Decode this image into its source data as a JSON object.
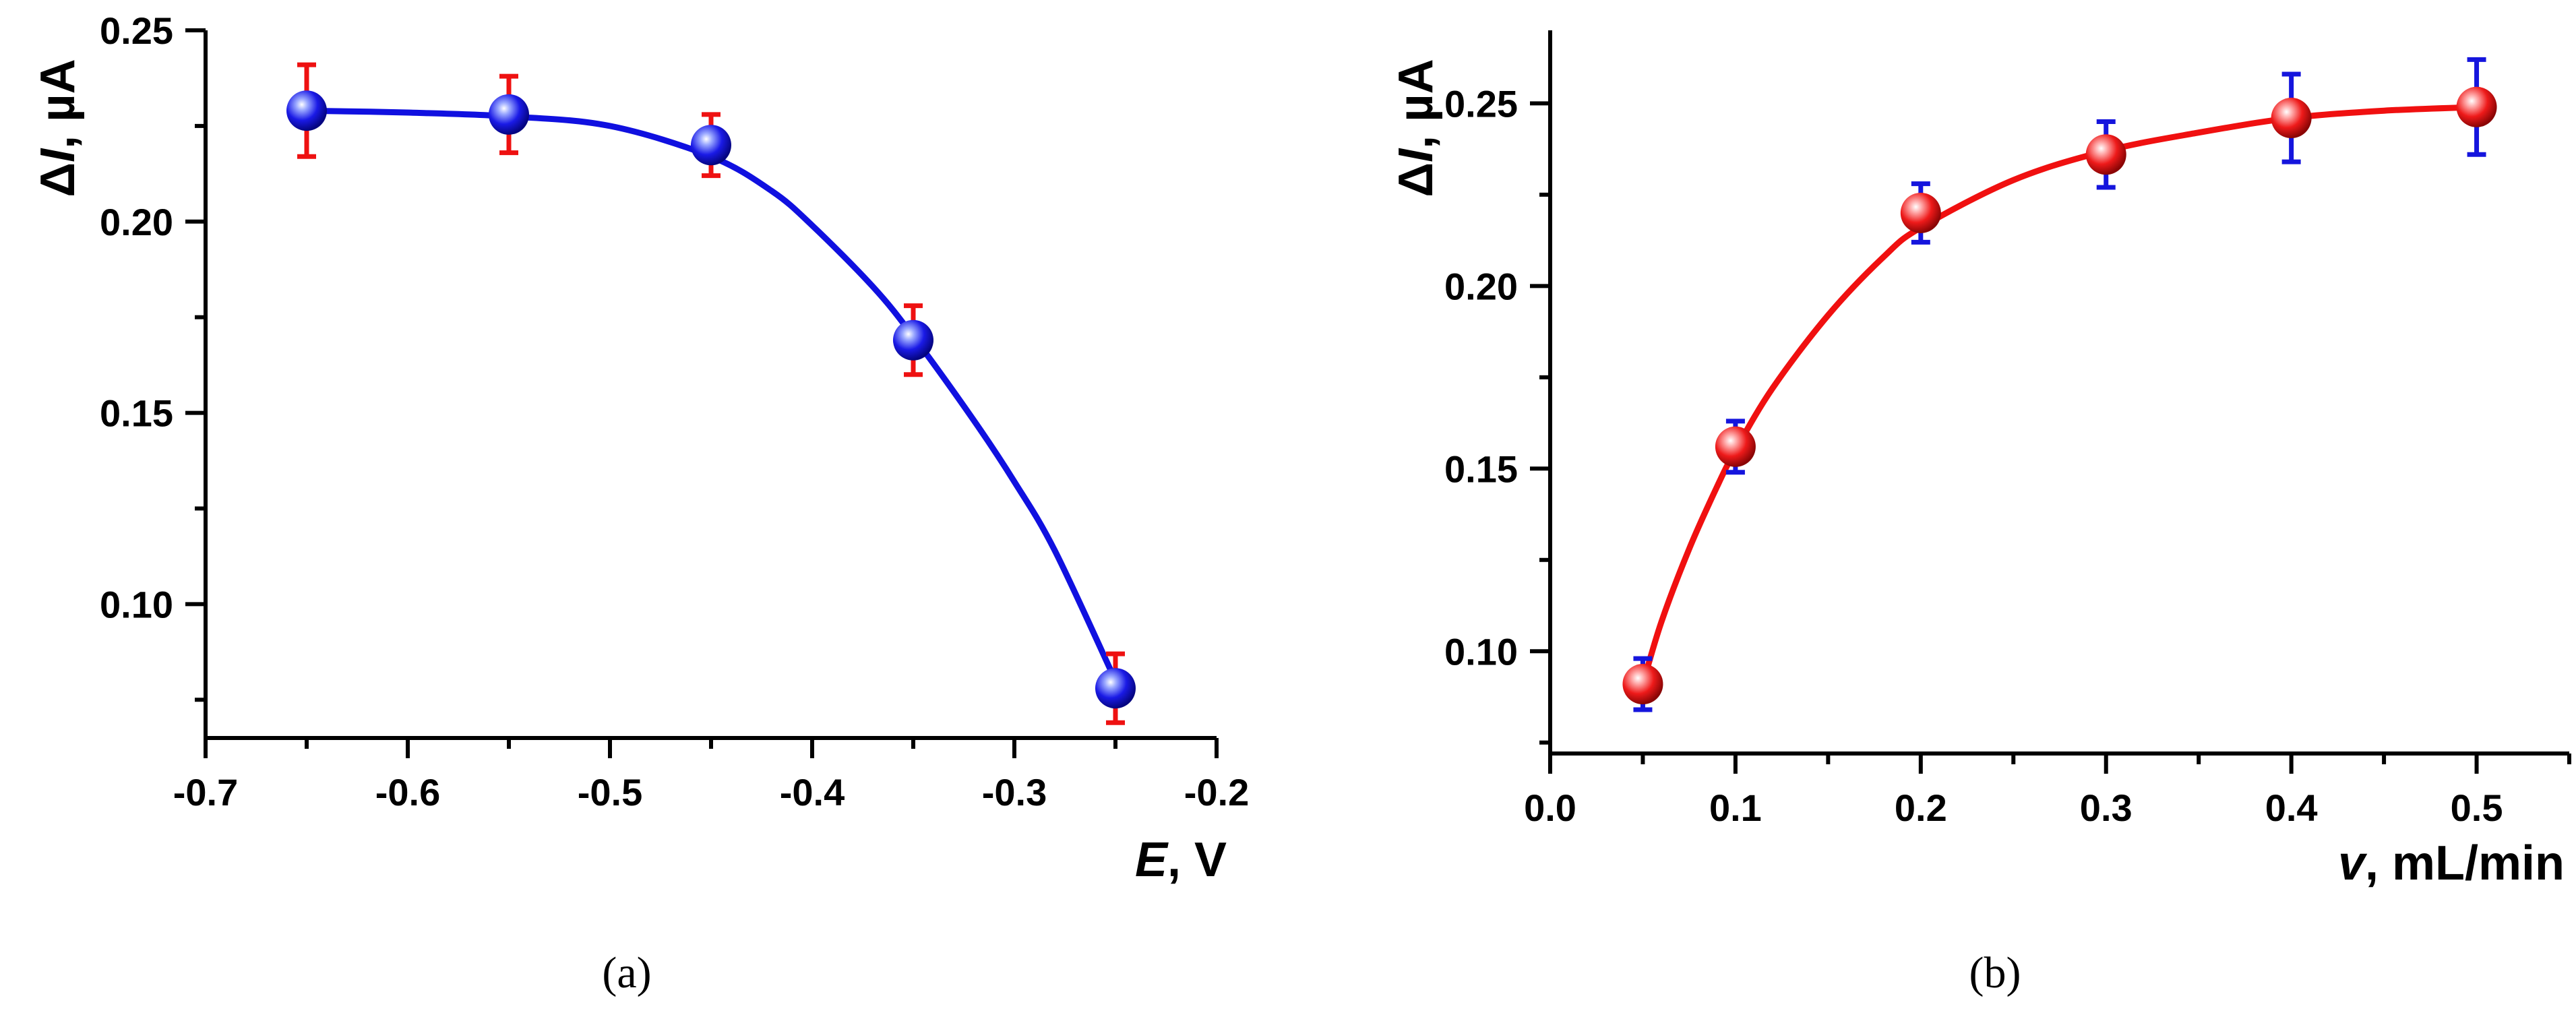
{
  "chart_data": [
    {
      "id": "a",
      "type": "scatter",
      "caption": "(a)",
      "xlabel_italic": "E",
      "xlabel_rest": ", V",
      "ylabel_delta": "Δ",
      "ylabel_italic": "I",
      "ylabel_rest": ", µA",
      "xlim": [
        -0.7,
        -0.2
      ],
      "ylim": [
        0.065,
        0.25
      ],
      "xticks": [
        -0.7,
        -0.6,
        -0.5,
        -0.4,
        -0.3,
        -0.2
      ],
      "xtick_labels": [
        "-0.7",
        "-0.6",
        "-0.5",
        "-0.4",
        "-0.3",
        "-0.2"
      ],
      "yticks": [
        0.1,
        0.15,
        0.2,
        0.25
      ],
      "ytick_labels": [
        "0.10",
        "0.15",
        "0.20",
        "0.25"
      ],
      "x": [
        -0.65,
        -0.55,
        -0.45,
        -0.35,
        -0.25
      ],
      "y": [
        0.229,
        0.228,
        0.22,
        0.169,
        0.078
      ],
      "yerr": [
        0.012,
        0.01,
        0.008,
        0.009,
        0.009
      ],
      "fit_x": [
        -0.65,
        -0.6,
        -0.55,
        -0.5,
        -0.45,
        -0.42,
        -0.4,
        -0.37,
        -0.35,
        -0.32,
        -0.3,
        -0.28,
        -0.25
      ],
      "fit_y": [
        0.229,
        0.2285,
        0.2275,
        0.225,
        0.217,
        0.208,
        0.199,
        0.183,
        0.17,
        0.148,
        0.132,
        0.114,
        0.08
      ],
      "marker_color": "#1a1ae6",
      "errorbar_color": "#ee1111",
      "line_color": "#1010e0"
    },
    {
      "id": "b",
      "type": "scatter",
      "caption": "(b)",
      "xlabel_italic": "v",
      "xlabel_rest": ", mL/min",
      "ylabel_delta": "Δ",
      "ylabel_italic": "I",
      "ylabel_rest": ", µA",
      "xlim": [
        0.0,
        0.55
      ],
      "ylim": [
        0.072,
        0.27
      ],
      "xticks": [
        0.0,
        0.1,
        0.2,
        0.3,
        0.4,
        0.5
      ],
      "xtick_labels": [
        "0.0",
        "0.1",
        "0.2",
        "0.3",
        "0.4",
        "0.5"
      ],
      "yticks": [
        0.1,
        0.15,
        0.2,
        0.25
      ],
      "ytick_labels": [
        "0.10",
        "0.15",
        "0.20",
        "0.25"
      ],
      "x": [
        0.05,
        0.1,
        0.2,
        0.3,
        0.4,
        0.5
      ],
      "y": [
        0.091,
        0.156,
        0.22,
        0.236,
        0.246,
        0.249
      ],
      "yerr": [
        0.007,
        0.007,
        0.008,
        0.009,
        0.012,
        0.013
      ],
      "fit_x": [
        0.05,
        0.06,
        0.075,
        0.09,
        0.1,
        0.12,
        0.15,
        0.18,
        0.2,
        0.25,
        0.3,
        0.35,
        0.4,
        0.45,
        0.5
      ],
      "fit_y": [
        0.091,
        0.108,
        0.128,
        0.145,
        0.155,
        0.172,
        0.192,
        0.208,
        0.216,
        0.229,
        0.237,
        0.242,
        0.246,
        0.248,
        0.249
      ],
      "marker_color": "#ee1a1a",
      "errorbar_color": "#1515dd",
      "line_color": "#f01010"
    }
  ]
}
